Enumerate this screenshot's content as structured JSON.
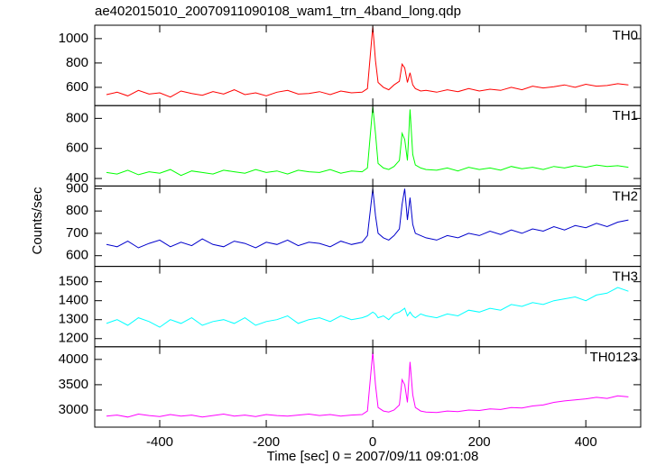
{
  "title": "ae402015010_20070911090108_wam1_trn_4band_long.qdp",
  "xlabel": "Time [sec] 0 = 2007/09/11 09:01:08",
  "ylabel": "Counts/sec",
  "chart_data": [
    {
      "type": "line",
      "xlim": [
        -522,
        503
      ],
      "ylim": [
        450,
        1110
      ],
      "yticks": [
        600,
        800,
        1000
      ],
      "x": [
        -500,
        -480,
        -460,
        -440,
        -420,
        -400,
        -380,
        -360,
        -340,
        -320,
        -300,
        -280,
        -260,
        -240,
        -220,
        -200,
        -180,
        -160,
        -140,
        -120,
        -100,
        -80,
        -60,
        -40,
        -20,
        -10,
        0,
        5,
        10,
        20,
        30,
        40,
        50,
        55,
        60,
        65,
        70,
        75,
        80,
        90,
        100,
        120,
        140,
        160,
        180,
        200,
        220,
        240,
        260,
        280,
        300,
        320,
        340,
        360,
        380,
        400,
        420,
        440,
        460,
        480
      ],
      "series": [
        {
          "name": "TH0",
          "color": "#ff0000",
          "values": [
            540,
            560,
            530,
            575,
            545,
            555,
            520,
            570,
            550,
            535,
            565,
            545,
            580,
            540,
            555,
            530,
            560,
            575,
            545,
            550,
            565,
            540,
            570,
            555,
            560,
            590,
            1100,
            820,
            640,
            600,
            580,
            620,
            650,
            790,
            760,
            640,
            720,
            620,
            590,
            570,
            575,
            560,
            580,
            565,
            590,
            570,
            585,
            575,
            600,
            580,
            610,
            595,
            605,
            620,
            600,
            625,
            610,
            615,
            630,
            620
          ]
        }
      ]
    },
    {
      "type": "line",
      "xlim": [
        -522,
        503
      ],
      "ylim": [
        350,
        885
      ],
      "yticks": [
        400,
        600,
        800
      ],
      "x": [
        -500,
        -480,
        -460,
        -440,
        -420,
        -400,
        -380,
        -360,
        -340,
        -320,
        -300,
        -280,
        -260,
        -240,
        -220,
        -200,
        -180,
        -160,
        -140,
        -120,
        -100,
        -80,
        -60,
        -40,
        -20,
        -10,
        0,
        5,
        10,
        20,
        30,
        40,
        50,
        55,
        60,
        65,
        70,
        75,
        80,
        90,
        100,
        120,
        140,
        160,
        180,
        200,
        220,
        240,
        260,
        280,
        300,
        320,
        340,
        360,
        380,
        400,
        420,
        440,
        460,
        480
      ],
      "series": [
        {
          "name": "TH1",
          "color": "#00ff00",
          "values": [
            440,
            430,
            455,
            425,
            445,
            435,
            460,
            420,
            450,
            440,
            430,
            455,
            445,
            435,
            460,
            440,
            450,
            430,
            455,
            445,
            440,
            460,
            435,
            450,
            445,
            470,
            880,
            700,
            500,
            470,
            460,
            480,
            520,
            700,
            660,
            520,
            860,
            560,
            490,
            470,
            460,
            455,
            470,
            450,
            475,
            460,
            470,
            455,
            480,
            465,
            475,
            460,
            480,
            470,
            485,
            475,
            490,
            480,
            485,
            475
          ]
        }
      ]
    },
    {
      "type": "line",
      "xlim": [
        -522,
        503
      ],
      "ylim": [
        552,
        912
      ],
      "yticks": [
        600,
        700,
        800,
        900
      ],
      "x": [
        -500,
        -480,
        -460,
        -440,
        -420,
        -400,
        -380,
        -360,
        -340,
        -320,
        -300,
        -280,
        -260,
        -240,
        -220,
        -200,
        -180,
        -160,
        -140,
        -120,
        -100,
        -80,
        -60,
        -40,
        -20,
        -10,
        0,
        5,
        10,
        20,
        30,
        40,
        50,
        55,
        60,
        65,
        70,
        75,
        80,
        90,
        100,
        120,
        140,
        160,
        180,
        200,
        220,
        240,
        260,
        280,
        300,
        320,
        340,
        360,
        380,
        400,
        420,
        440,
        460,
        480
      ],
      "series": [
        {
          "name": "TH2",
          "color": "#0000cc",
          "values": [
            650,
            640,
            665,
            635,
            655,
            670,
            640,
            660,
            645,
            675,
            650,
            640,
            665,
            655,
            635,
            660,
            650,
            670,
            645,
            660,
            655,
            640,
            665,
            650,
            660,
            690,
            900,
            780,
            700,
            680,
            670,
            690,
            720,
            830,
            900,
            760,
            860,
            740,
            700,
            690,
            680,
            670,
            690,
            680,
            700,
            690,
            710,
            695,
            715,
            700,
            720,
            710,
            730,
            715,
            735,
            725,
            745,
            730,
            750,
            760
          ]
        }
      ]
    },
    {
      "type": "line",
      "xlim": [
        -522,
        503
      ],
      "ylim": [
        1157,
        1581
      ],
      "yticks": [
        1200,
        1300,
        1400,
        1500
      ],
      "x": [
        -500,
        -480,
        -460,
        -440,
        -420,
        -400,
        -380,
        -360,
        -340,
        -320,
        -300,
        -280,
        -260,
        -240,
        -220,
        -200,
        -180,
        -160,
        -140,
        -120,
        -100,
        -80,
        -60,
        -40,
        -20,
        -10,
        0,
        5,
        10,
        20,
        30,
        40,
        50,
        55,
        60,
        65,
        70,
        75,
        80,
        90,
        100,
        120,
        140,
        160,
        180,
        200,
        220,
        240,
        260,
        280,
        300,
        320,
        340,
        360,
        380,
        400,
        420,
        440,
        460,
        480
      ],
      "series": [
        {
          "name": "TH3",
          "color": "#00ffff",
          "values": [
            1280,
            1300,
            1270,
            1310,
            1290,
            1260,
            1300,
            1280,
            1310,
            1270,
            1290,
            1300,
            1280,
            1310,
            1270,
            1290,
            1300,
            1320,
            1280,
            1300,
            1310,
            1290,
            1320,
            1300,
            1310,
            1320,
            1340,
            1330,
            1310,
            1320,
            1300,
            1330,
            1340,
            1350,
            1360,
            1320,
            1340,
            1320,
            1310,
            1330,
            1320,
            1310,
            1330,
            1320,
            1350,
            1340,
            1360,
            1350,
            1380,
            1370,
            1390,
            1380,
            1400,
            1410,
            1420,
            1400,
            1430,
            1440,
            1470,
            1450
          ]
        }
      ]
    },
    {
      "type": "line",
      "xlim": [
        -522,
        503
      ],
      "ylim": [
        2661,
        4250
      ],
      "yticks": [
        3000,
        3500,
        4000
      ],
      "xticks": [
        -400,
        -200,
        0,
        200,
        400
      ],
      "x": [
        -500,
        -480,
        -460,
        -440,
        -420,
        -400,
        -380,
        -360,
        -340,
        -320,
        -300,
        -280,
        -260,
        -240,
        -220,
        -200,
        -180,
        -160,
        -140,
        -120,
        -100,
        -80,
        -60,
        -40,
        -20,
        -10,
        0,
        5,
        10,
        20,
        30,
        40,
        50,
        55,
        60,
        65,
        70,
        75,
        80,
        90,
        100,
        120,
        140,
        160,
        180,
        200,
        220,
        240,
        260,
        280,
        300,
        320,
        340,
        360,
        380,
        400,
        420,
        440,
        460,
        480
      ],
      "series": [
        {
          "name": "TH0123",
          "color": "#ff00ff",
          "values": [
            2880,
            2900,
            2860,
            2920,
            2890,
            2870,
            2910,
            2880,
            2900,
            2860,
            2890,
            2920,
            2880,
            2900,
            2870,
            2910,
            2890,
            2880,
            2900,
            2920,
            2890,
            2910,
            2880,
            2900,
            2910,
            2980,
            4150,
            3500,
            3050,
            2980,
            2960,
            3000,
            3100,
            3600,
            3500,
            3150,
            3950,
            3300,
            3050,
            2980,
            2960,
            2950,
            2980,
            2970,
            3000,
            2990,
            3020,
            3010,
            3050,
            3040,
            3080,
            3100,
            3150,
            3180,
            3200,
            3220,
            3250,
            3230,
            3280,
            3260
          ]
        }
      ]
    }
  ]
}
